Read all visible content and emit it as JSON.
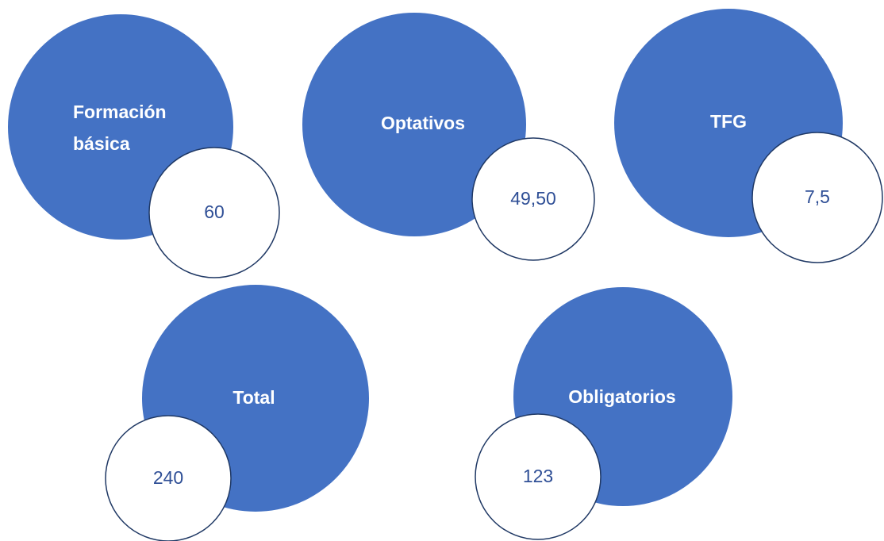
{
  "nodes": [
    {
      "label": [
        "Formación",
        "básica"
      ],
      "value": "60"
    },
    {
      "label": [
        "Optativos"
      ],
      "value": "49,50"
    },
    {
      "label": [
        "TFG"
      ],
      "value": "7,5"
    },
    {
      "label": [
        "Total"
      ],
      "value": "240"
    },
    {
      "label": [
        "Obligatorios"
      ],
      "value": "123"
    }
  ]
}
